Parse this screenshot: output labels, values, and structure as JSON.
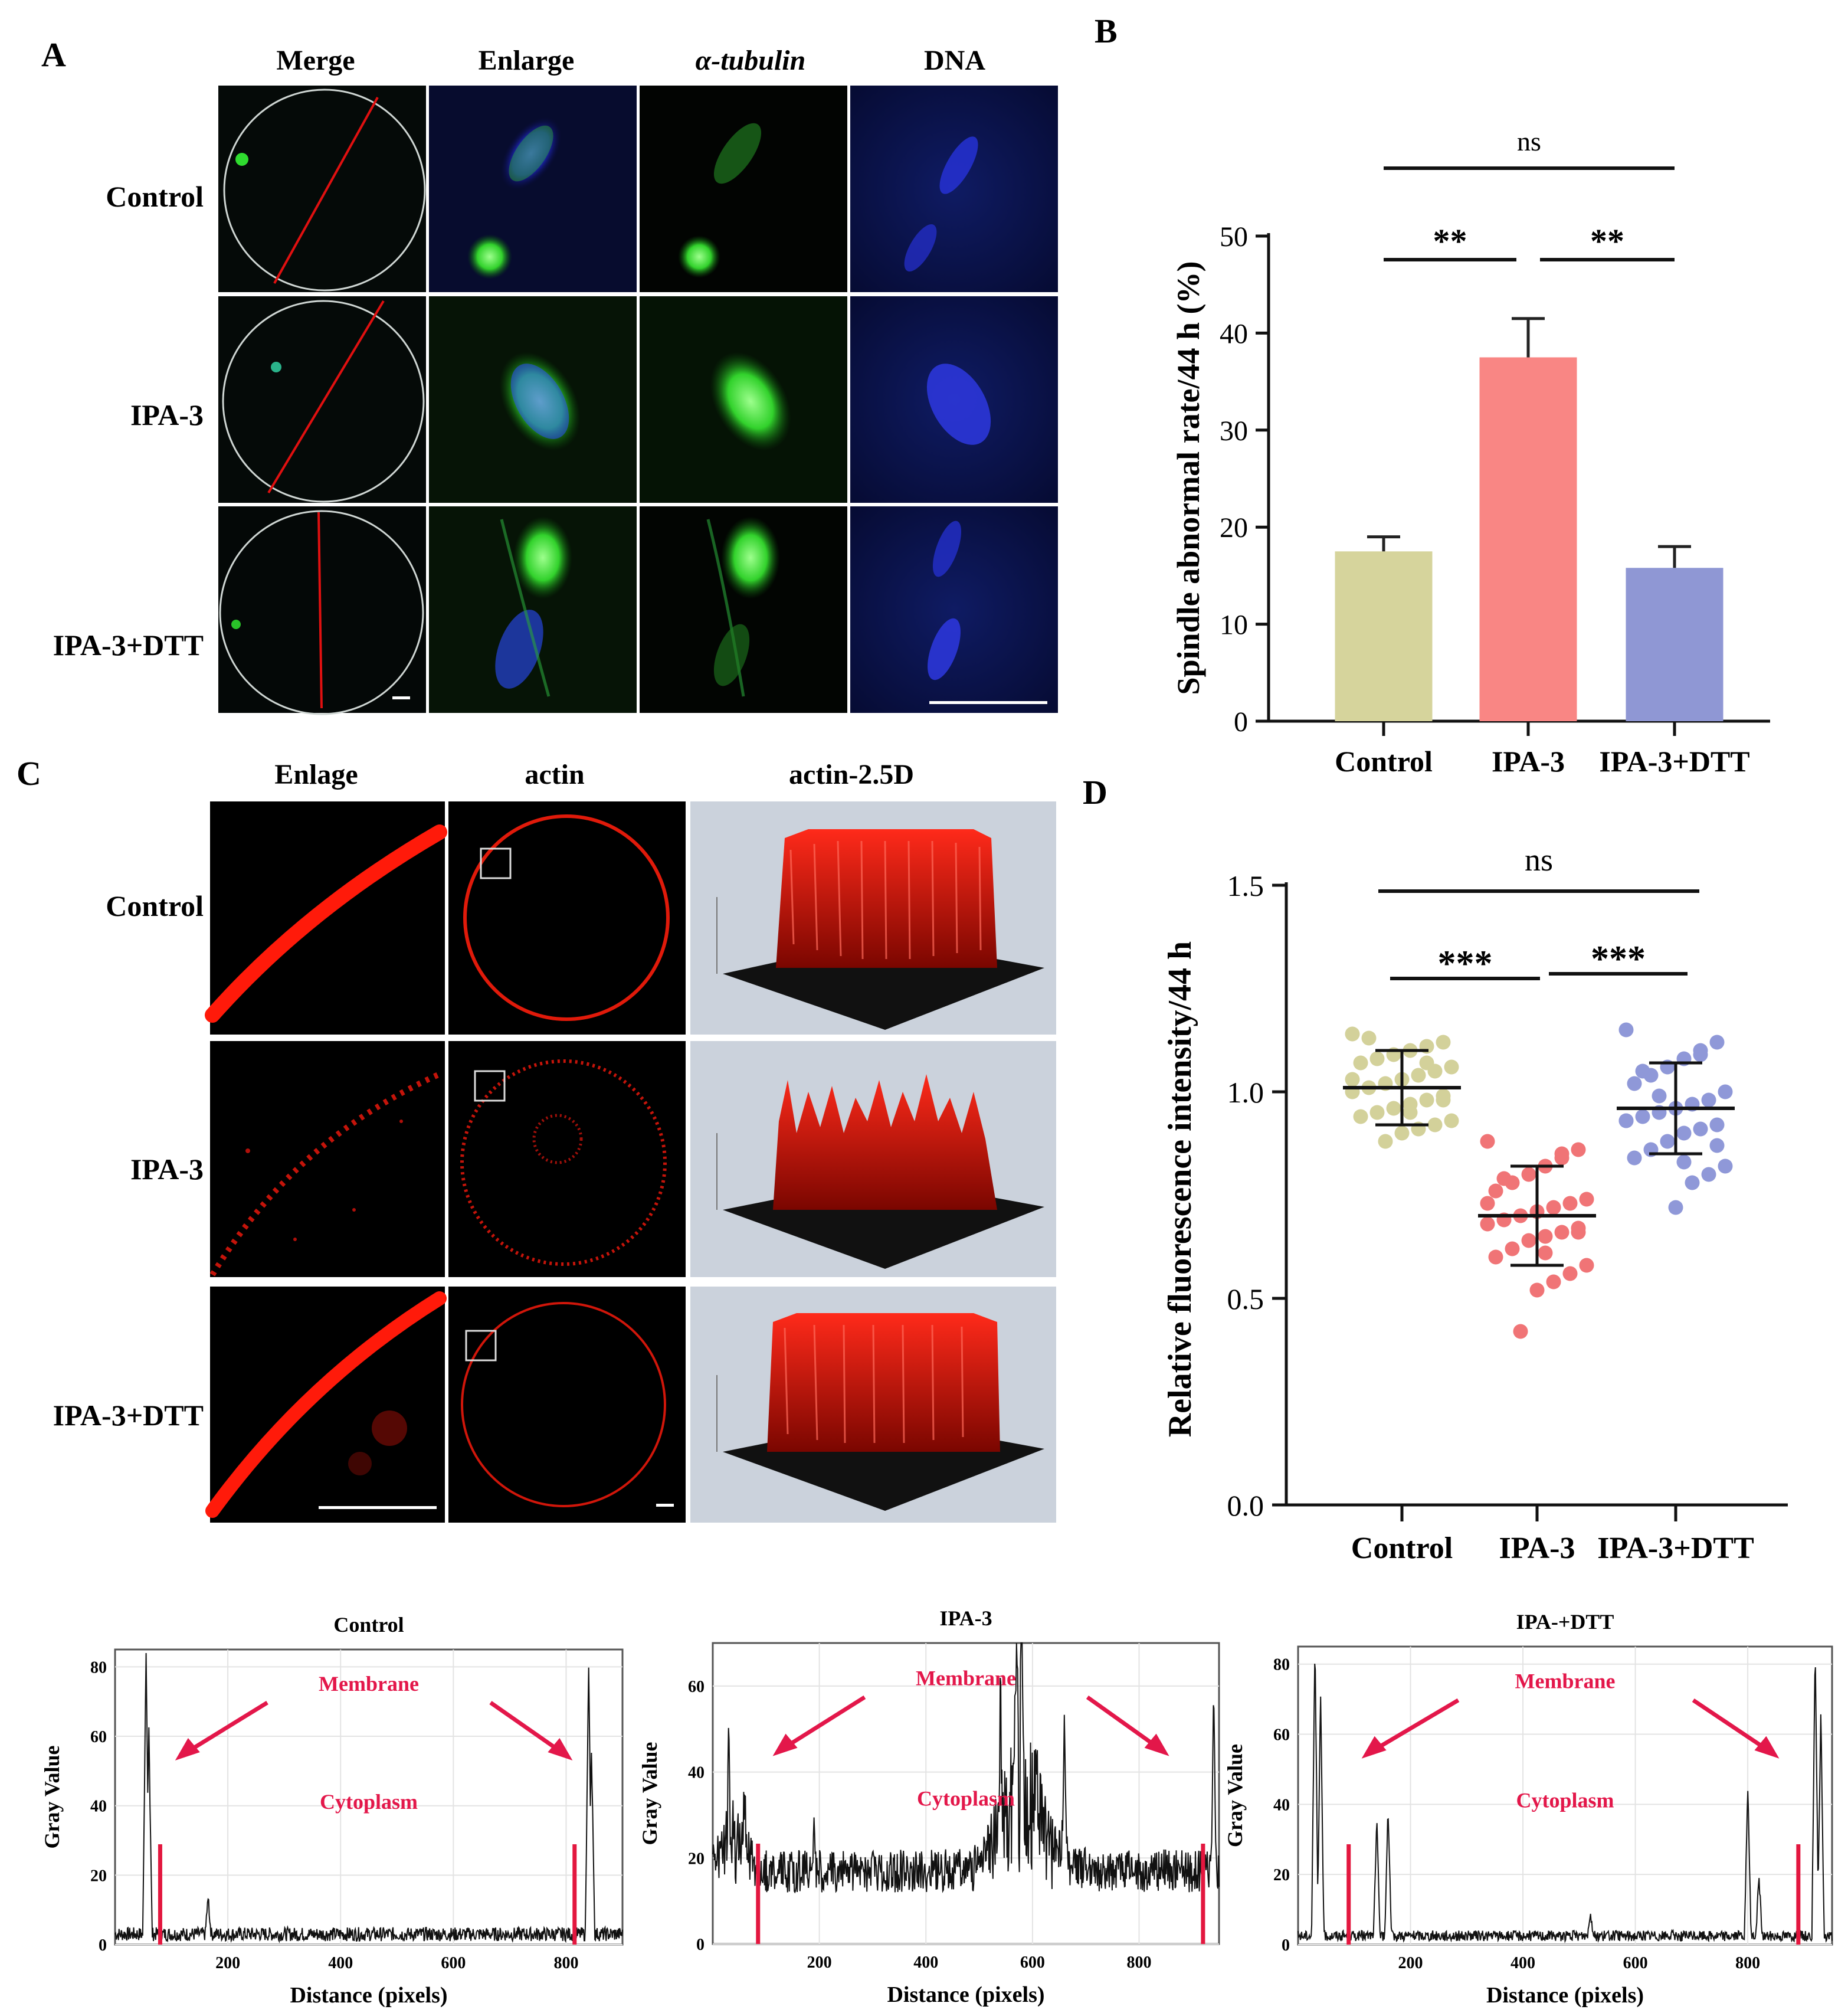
{
  "panels": {
    "A": {
      "letter": "A",
      "columns": [
        "Merge",
        "Enlarge",
        "α-tubulin",
        "DNA"
      ],
      "rows": [
        "Control",
        "IPA-3",
        "IPA-3+DTT"
      ]
    },
    "B": {
      "letter": "B",
      "chart_data": {
        "type": "bar",
        "ylabel": "Spindle abnormal rate/44 h (%)",
        "categories": [
          "Control",
          "IPA-3",
          "IPA-3+DTT"
        ],
        "values": [
          17.5,
          37.5,
          15.8
        ],
        "errors": [
          1.5,
          4.0,
          2.2
        ],
        "colors": [
          "#d6d49c",
          "#f98684",
          "#8f97d4"
        ],
        "ylim": [
          0,
          50
        ],
        "yticks": [
          0,
          10,
          20,
          30,
          40,
          50
        ],
        "significance": [
          {
            "from": 0,
            "to": 1,
            "label": "**"
          },
          {
            "from": 1,
            "to": 2,
            "label": "**"
          },
          {
            "from": 0,
            "to": 2,
            "label": "ns"
          }
        ]
      }
    },
    "C": {
      "letter": "C",
      "columns": [
        "Enlage",
        "actin",
        "actin-2.5D"
      ],
      "rows": [
        "Control",
        "IPA-3",
        "IPA-3+DTT"
      ]
    },
    "D": {
      "letter": "D",
      "chart_data": {
        "type": "scatter",
        "ylabel": "Relative fluorescence intensity/44 h",
        "categories": [
          "Control",
          "IPA-3",
          "IPA-3+DTT"
        ],
        "means": [
          1.01,
          0.7,
          0.96
        ],
        "sd": [
          0.09,
          0.12,
          0.11
        ],
        "colors": [
          "#d3d19a",
          "#f07476",
          "#8f98d8"
        ],
        "ylim": [
          0.0,
          1.5
        ],
        "yticks": [
          "0.0",
          "0.5",
          "1.0",
          "1.5"
        ],
        "points": [
          [
            1.14,
            1.12,
            1.11,
            1.1,
            1.09,
            1.08,
            1.07,
            1.06,
            1.05,
            1.04,
            1.03,
            1.02,
            1.01,
            1.0,
            0.99,
            0.98,
            0.97,
            0.96,
            0.95,
            0.94,
            0.93,
            0.92,
            0.91,
            0.9,
            0.88,
            1.13,
            1.03,
            0.98,
            1.07,
            0.95
          ],
          [
            0.88,
            0.86,
            0.84,
            0.82,
            0.8,
            0.78,
            0.76,
            0.74,
            0.73,
            0.72,
            0.71,
            0.7,
            0.69,
            0.68,
            0.67,
            0.66,
            0.65,
            0.64,
            0.62,
            0.6,
            0.58,
            0.56,
            0.54,
            0.52,
            0.42,
            0.79,
            0.73,
            0.66,
            0.85,
            0.61
          ],
          [
            1.15,
            1.12,
            1.1,
            1.08,
            1.06,
            1.04,
            1.02,
            1.0,
            0.98,
            0.97,
            0.96,
            0.95,
            0.94,
            0.93,
            0.92,
            0.91,
            0.9,
            0.88,
            0.86,
            0.84,
            0.82,
            0.8,
            0.78,
            0.72,
            0.99,
            1.05,
            0.93,
            0.87,
            1.09,
            0.83
          ]
        ],
        "significance": [
          {
            "from": 0,
            "to": 1,
            "label": "***"
          },
          {
            "from": 1,
            "to": 2,
            "label": "***"
          },
          {
            "from": 0,
            "to": 2,
            "label": "ns"
          }
        ]
      }
    },
    "profiles": [
      {
        "title": "Control",
        "xlabel": "Distance (pixels)",
        "ylabel": "Gray Value",
        "membrane_label": "Membrane",
        "cytoplasm_label": "Cytoplasm",
        "chart_data": {
          "type": "line",
          "xlim": [
            0,
            900
          ],
          "ylim": [
            0,
            85
          ],
          "xticks": [
            200,
            400,
            600,
            800
          ],
          "yticks": [
            0,
            20,
            40,
            60,
            80
          ],
          "peaks": [
            [
              55,
              83
            ],
            [
              60,
              60
            ],
            [
              165,
              12
            ],
            [
              840,
              79
            ],
            [
              845,
              55
            ]
          ],
          "baseline": 1,
          "noise": 4,
          "cytoplasm_bounds": [
            80,
            815
          ]
        }
      },
      {
        "title": "IPA-3",
        "xlabel": "Distance (pixels)",
        "ylabel": "Gray Value",
        "membrane_label": "Membrane",
        "cytoplasm_label": "Cytoplasm",
        "chart_data": {
          "type": "line",
          "xlim": [
            0,
            950
          ],
          "ylim": [
            0,
            70
          ],
          "xticks": [
            200,
            400,
            600,
            800
          ],
          "yticks": [
            0,
            20,
            40,
            60
          ],
          "peaks": [
            [
              30,
              35
            ],
            [
              60,
              30
            ],
            [
              190,
              28
            ],
            [
              300,
              22
            ],
            [
              540,
              45
            ],
            [
              570,
              62
            ],
            [
              580,
              70
            ],
            [
              660,
              48
            ],
            [
              940,
              58
            ]
          ],
          "baseline": 12,
          "noise": 10,
          "cytoplasm_bounds": [
            85,
            920
          ]
        }
      },
      {
        "title": "IPA-+DTT",
        "xlabel": "Distance (pixels)",
        "ylabel": "Gray Value",
        "membrane_label": "Membrane",
        "cytoplasm_label": "Cytoplasm",
        "chart_data": {
          "type": "line",
          "xlim": [
            0,
            950
          ],
          "ylim": [
            0,
            85
          ],
          "xticks": [
            200,
            400,
            600,
            800
          ],
          "yticks": [
            0,
            20,
            40,
            60,
            80
          ],
          "peaks": [
            [
              30,
              85
            ],
            [
              40,
              70
            ],
            [
              140,
              35
            ],
            [
              160,
              38
            ],
            [
              520,
              8
            ],
            [
              800,
              44
            ],
            [
              820,
              18
            ],
            [
              920,
              85
            ],
            [
              930,
              65
            ]
          ],
          "baseline": 1,
          "noise": 3,
          "cytoplasm_bounds": [
            90,
            890
          ]
        }
      }
    ]
  }
}
